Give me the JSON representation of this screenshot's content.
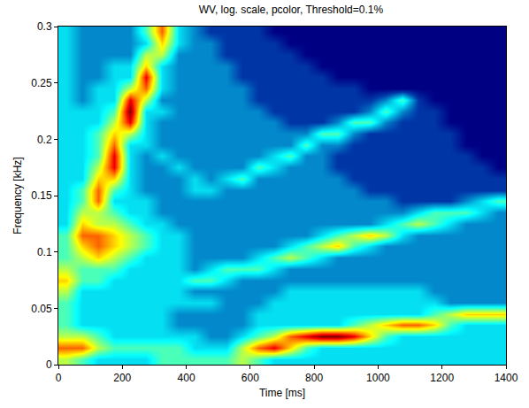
{
  "chart_data": {
    "type": "heatmap",
    "title": "WV, log. scale, pcolor, Threshold=0.1%",
    "x_label": "Time [ms]",
    "y_label": "Frequency [kHz]",
    "x": [
      25,
      75,
      125,
      175,
      225,
      275,
      325,
      375,
      425,
      475,
      525,
      575,
      625,
      675,
      725,
      775,
      825,
      875,
      925,
      975,
      1025,
      1075,
      1125,
      1175,
      1225,
      1275,
      1325,
      1375
    ],
    "y": [
      0.005,
      0.015,
      0.025,
      0.035,
      0.045,
      0.055,
      0.065,
      0.075,
      0.085,
      0.095,
      0.105,
      0.115,
      0.125,
      0.135,
      0.145,
      0.155,
      0.165,
      0.175,
      0.185,
      0.195,
      0.205,
      0.215,
      0.225,
      0.235,
      0.245,
      0.255,
      0.265,
      0.275,
      0.285,
      0.295
    ],
    "cells": [
      [
        5,
        4,
        3,
        3,
        3,
        3,
        4,
        4,
        4,
        4,
        4,
        5,
        4,
        3,
        3,
        3,
        3,
        3,
        3,
        3,
        3,
        3,
        3,
        3,
        3,
        3,
        3,
        3
      ],
      [
        7,
        7,
        5,
        4,
        4,
        4,
        4,
        4,
        3,
        3,
        3,
        5,
        7,
        8,
        6,
        4,
        3,
        3,
        3,
        3,
        3,
        3,
        3,
        3,
        3,
        3,
        3,
        3
      ],
      [
        5,
        5,
        4,
        3,
        3,
        3,
        3,
        3,
        3,
        2,
        2,
        3,
        4,
        5,
        7,
        8,
        9,
        9,
        8,
        6,
        4,
        3,
        3,
        3,
        3,
        3,
        3,
        3
      ],
      [
        4,
        3,
        3,
        3,
        3,
        3,
        3,
        2,
        2,
        2,
        2,
        2,
        3,
        3,
        3,
        3,
        3,
        3,
        4,
        5,
        6,
        7,
        7,
        6,
        4,
        3,
        3,
        3
      ],
      [
        4,
        3,
        3,
        3,
        3,
        3,
        3,
        2,
        2,
        2,
        2,
        2,
        3,
        3,
        3,
        3,
        3,
        3,
        3,
        3,
        3,
        3,
        3,
        4,
        5,
        6,
        6,
        6
      ],
      [
        4,
        3,
        3,
        3,
        3,
        3,
        3,
        3,
        3,
        3,
        2,
        2,
        2,
        3,
        3,
        3,
        3,
        3,
        3,
        3,
        3,
        3,
        3,
        3,
        2,
        2,
        2,
        2
      ],
      [
        5,
        3,
        3,
        3,
        3,
        3,
        3,
        3,
        2,
        2,
        2,
        2,
        2,
        2,
        3,
        3,
        3,
        3,
        3,
        3,
        3,
        3,
        3,
        2,
        2,
        2,
        2,
        2
      ],
      [
        6,
        4,
        4,
        3,
        3,
        3,
        3,
        3,
        4,
        4,
        3,
        2,
        2,
        2,
        2,
        2,
        2,
        2,
        2,
        2,
        2,
        2,
        2,
        2,
        2,
        2,
        2,
        2
      ],
      [
        5,
        4,
        4,
        4,
        3,
        3,
        3,
        3,
        2,
        3,
        4,
        4,
        4,
        3,
        2,
        2,
        2,
        2,
        2,
        2,
        2,
        2,
        2,
        2,
        2,
        2,
        2,
        2
      ],
      [
        4,
        5,
        6,
        5,
        4,
        3,
        3,
        3,
        2,
        2,
        2,
        2,
        3,
        4,
        5,
        4,
        3,
        2,
        2,
        2,
        2,
        2,
        2,
        2,
        2,
        2,
        2,
        2
      ],
      [
        4,
        6,
        7,
        6,
        5,
        4,
        3,
        3,
        2,
        2,
        2,
        2,
        2,
        2,
        3,
        4,
        5,
        6,
        4,
        3,
        2,
        2,
        2,
        2,
        2,
        2,
        2,
        2
      ],
      [
        4,
        7,
        7,
        6,
        5,
        4,
        3,
        3,
        2,
        2,
        2,
        2,
        2,
        2,
        2,
        2,
        3,
        4,
        5,
        6,
        5,
        3,
        2,
        2,
        2,
        2,
        2,
        2
      ],
      [
        3,
        6,
        5,
        5,
        4,
        3,
        3,
        2,
        2,
        2,
        2,
        2,
        2,
        2,
        2,
        2,
        2,
        2,
        2,
        2,
        3,
        4,
        5,
        4,
        3,
        2,
        2,
        2
      ],
      [
        3,
        5,
        5,
        4,
        3,
        3,
        2,
        2,
        2,
        2,
        2,
        2,
        2,
        2,
        2,
        2,
        2,
        2,
        2,
        2,
        2,
        2,
        3,
        4,
        4,
        4,
        3,
        2
      ],
      [
        3,
        4,
        7,
        3,
        3,
        3,
        2,
        2,
        2,
        2,
        2,
        2,
        2,
        2,
        2,
        2,
        2,
        2,
        2,
        2,
        2,
        1,
        1,
        1,
        1,
        2,
        3,
        4
      ],
      [
        3,
        4,
        7,
        4,
        3,
        2,
        2,
        2,
        3,
        3,
        2,
        2,
        2,
        2,
        2,
        2,
        2,
        2,
        2,
        1,
        1,
        1,
        1,
        1,
        1,
        1,
        1,
        1
      ],
      [
        3,
        3,
        6,
        6,
        3,
        2,
        2,
        2,
        3,
        2,
        3,
        4,
        2,
        2,
        2,
        2,
        2,
        2,
        1,
        1,
        1,
        1,
        1,
        1,
        1,
        1,
        1,
        1
      ],
      [
        3,
        3,
        5,
        8,
        3,
        2,
        2,
        3,
        2,
        2,
        2,
        2,
        4,
        3,
        2,
        2,
        2,
        1,
        1,
        1,
        1,
        1,
        1,
        1,
        1,
        1,
        1,
        0
      ],
      [
        3,
        3,
        4,
        8,
        3,
        2,
        3,
        2,
        2,
        2,
        2,
        2,
        2,
        3,
        4,
        2,
        2,
        1,
        1,
        1,
        1,
        1,
        1,
        1,
        1,
        1,
        0,
        0
      ],
      [
        3,
        3,
        4,
        7,
        3,
        3,
        2,
        2,
        2,
        2,
        2,
        2,
        2,
        2,
        2,
        4,
        2,
        2,
        1,
        1,
        1,
        1,
        1,
        1,
        1,
        0,
        0,
        0
      ],
      [
        3,
        3,
        4,
        6,
        5,
        3,
        2,
        2,
        2,
        2,
        2,
        2,
        2,
        2,
        2,
        2,
        4,
        4,
        2,
        1,
        1,
        1,
        1,
        1,
        1,
        0,
        0,
        0
      ],
      [
        3,
        3,
        3,
        5,
        8,
        3,
        2,
        2,
        2,
        2,
        2,
        2,
        2,
        2,
        1,
        1,
        1,
        2,
        4,
        4,
        2,
        1,
        1,
        1,
        0,
        0,
        0,
        0
      ],
      [
        3,
        3,
        3,
        4,
        9,
        3,
        3,
        2,
        2,
        2,
        2,
        2,
        2,
        1,
        1,
        1,
        1,
        1,
        1,
        2,
        4,
        2,
        1,
        1,
        0,
        0,
        0,
        0
      ],
      [
        3,
        2,
        3,
        3,
        8,
        5,
        2,
        2,
        2,
        2,
        2,
        2,
        1,
        1,
        1,
        1,
        1,
        1,
        1,
        1,
        2,
        4,
        1,
        0,
        0,
        0,
        0,
        0
      ],
      [
        3,
        2,
        3,
        3,
        5,
        7,
        3,
        2,
        2,
        2,
        2,
        2,
        1,
        1,
        1,
        1,
        1,
        1,
        1,
        0,
        0,
        0,
        0,
        0,
        0,
        0,
        0,
        0
      ],
      [
        3,
        2,
        2,
        3,
        3,
        8,
        3,
        2,
        2,
        2,
        2,
        1,
        1,
        1,
        1,
        1,
        1,
        0,
        0,
        0,
        0,
        0,
        0,
        0,
        0,
        0,
        0,
        0
      ],
      [
        3,
        2,
        2,
        3,
        3,
        6,
        3,
        2,
        2,
        2,
        2,
        1,
        1,
        1,
        1,
        1,
        0,
        0,
        0,
        0,
        0,
        0,
        0,
        0,
        0,
        0,
        0,
        0
      ],
      [
        3,
        2,
        2,
        2,
        2,
        5,
        5,
        2,
        2,
        2,
        1,
        1,
        1,
        1,
        1,
        0,
        0,
        0,
        0,
        0,
        0,
        0,
        0,
        0,
        0,
        0,
        0,
        0
      ],
      [
        3,
        2,
        2,
        2,
        2,
        3,
        6,
        3,
        2,
        2,
        1,
        1,
        1,
        1,
        0,
        0,
        0,
        0,
        0,
        0,
        0,
        0,
        0,
        0,
        0,
        0,
        0,
        0
      ],
      [
        3,
        2,
        2,
        2,
        2,
        4,
        7,
        3,
        2,
        1,
        1,
        1,
        1,
        0,
        0,
        0,
        0,
        0,
        0,
        0,
        0,
        0,
        0,
        0,
        0,
        0,
        0,
        0
      ]
    ],
    "xlim": [
      0,
      1400
    ],
    "ylim": [
      0,
      0.3
    ],
    "xticks": [
      0,
      200,
      400,
      600,
      800,
      1000,
      1200,
      1400
    ],
    "yticks": [
      0,
      0.05,
      0.1,
      0.15,
      0.2,
      0.25,
      0.3
    ],
    "color": "Jet"
  }
}
